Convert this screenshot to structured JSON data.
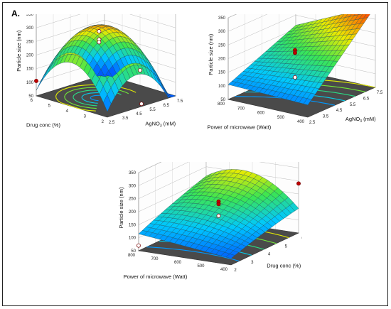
{
  "panel_label": "A.",
  "chart_data": [
    {
      "type": "surface",
      "zlabel": "Particle size (nm)",
      "xlabel_main": "AgNO",
      "xlabel_sub": "3",
      "xlabel_unit": " (mM)",
      "ylabel": "Drug conc (%)",
      "x_ticks": [
        "2.5",
        "3.5",
        "4.5",
        "5.5",
        "6.5",
        "7.5"
      ],
      "y_ticks": [
        "2",
        "3",
        "4",
        "5",
        "6"
      ],
      "z_ticks": [
        "50",
        "100",
        "150",
        "200",
        "250",
        "300",
        "350"
      ],
      "xlim": [
        2.5,
        7.5
      ],
      "ylim": [
        2,
        6
      ],
      "zlim": [
        50,
        350
      ],
      "surface_shape": "dome",
      "points": [
        {
          "x": 2.5,
          "y": 6,
          "z": 105
        },
        {
          "x": 4.5,
          "y": 4,
          "z": 295
        },
        {
          "x": 4.5,
          "y": 4,
          "z": 265
        },
        {
          "x": 4.5,
          "y": 4,
          "z": 255
        },
        {
          "x": 7.5,
          "y": 4,
          "z": 105
        },
        {
          "x": 5,
          "y": 2,
          "z": 60
        }
      ]
    },
    {
      "type": "surface",
      "zlabel": "Particle size (nm)",
      "xlabel_main": "AgNO",
      "xlabel_sub": "3",
      "xlabel_unit": " (mM)",
      "ylabel": "Power of microwave (Watt)",
      "x_ticks": [
        "2.5",
        "3.5",
        "4.5",
        "5.5",
        "6.5",
        "7.5"
      ],
      "y_ticks": [
        "400",
        "500",
        "600",
        "700",
        "800"
      ],
      "z_ticks": [
        "50",
        "100",
        "150",
        "200",
        "250",
        "300",
        "350"
      ],
      "xlim": [
        2.5,
        7.5
      ],
      "ylim": [
        400,
        800
      ],
      "zlim": [
        50,
        350
      ],
      "surface_shape": "rising",
      "points": [
        {
          "x": 7.5,
          "y": 400,
          "z": 330
        },
        {
          "x": 4.5,
          "y": 600,
          "z": 220
        },
        {
          "x": 4.5,
          "y": 600,
          "z": 210
        },
        {
          "x": 4.5,
          "y": 600,
          "z": 120
        }
      ]
    },
    {
      "type": "surface",
      "zlabel": "Particle size (nm)",
      "xlabel_main": "Drug conc (%)",
      "xlabel_sub": "",
      "xlabel_unit": "",
      "ylabel": "Power of microwave (Watt)",
      "x_ticks": [
        "2",
        "3",
        "4",
        "5",
        "6"
      ],
      "y_ticks": [
        "400",
        "500",
        "600",
        "700",
        "800"
      ],
      "z_ticks": [
        "50",
        "100",
        "150",
        "200",
        "250",
        "300",
        "350"
      ],
      "xlim": [
        2,
        6
      ],
      "ylim": [
        400,
        800
      ],
      "zlim": [
        50,
        350
      ],
      "surface_shape": "ridge",
      "points": [
        {
          "x": 2,
          "y": 800,
          "z": 70
        },
        {
          "x": 4,
          "y": 600,
          "z": 205
        },
        {
          "x": 4,
          "y": 600,
          "z": 195
        },
        {
          "x": 4,
          "y": 600,
          "z": 150
        },
        {
          "x": 6,
          "y": 400,
          "z": 240
        }
      ]
    }
  ]
}
